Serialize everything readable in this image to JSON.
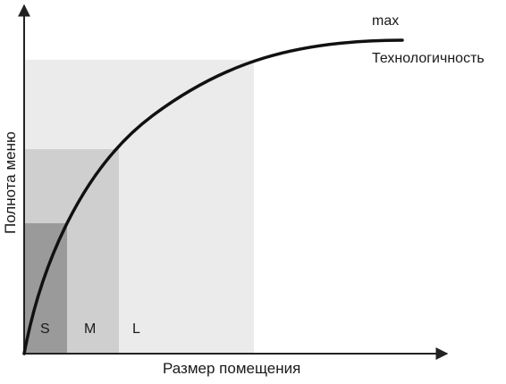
{
  "diagram": {
    "x_axis_label": "Размер помещения",
    "y_axis_label": "Полнота меню",
    "curve_labels": {
      "max": "max",
      "tech": "Технологичность"
    },
    "regions": [
      {
        "id": "L",
        "label": "L",
        "color": "#ebebeb"
      },
      {
        "id": "M",
        "label": "M",
        "color": "#cfcfcf"
      },
      {
        "id": "S",
        "label": "S",
        "color": "#9a9a9a"
      }
    ],
    "colors": {
      "curve": "#111111",
      "axis": "#222222"
    }
  }
}
